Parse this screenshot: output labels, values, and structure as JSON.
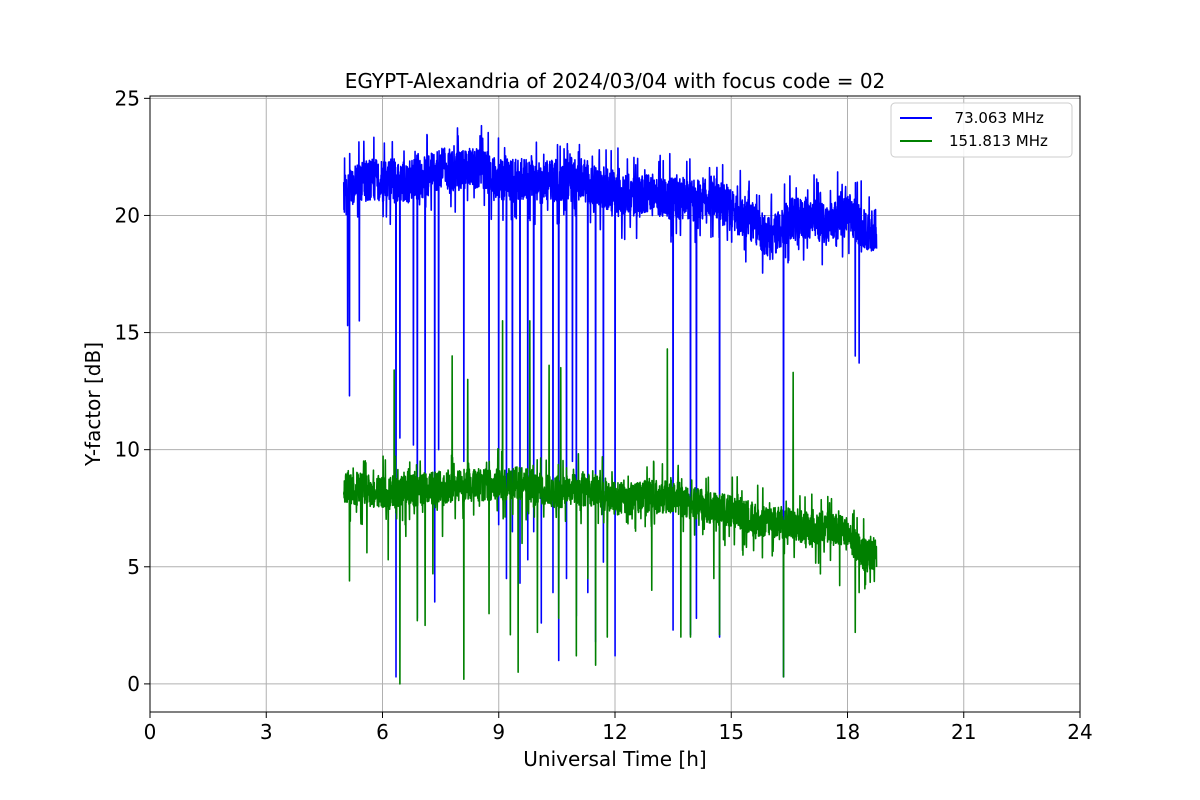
{
  "chart_data": {
    "type": "line",
    "title": "EGYPT-Alexandria of 2024/03/04 with focus code = 02",
    "xlabel": "Universal Time [h]",
    "ylabel": "Y-factor [dB]",
    "xlim": [
      0,
      24
    ],
    "ylim": [
      -1.2,
      25.1
    ],
    "xticks": [
      0,
      3,
      6,
      9,
      12,
      15,
      18,
      21,
      24
    ],
    "yticks": [
      0,
      5,
      10,
      15,
      20,
      25
    ],
    "grid": true,
    "legend_position": "top-right",
    "series": [
      {
        "name": "  73.063 MHz",
        "color": "#0000ff",
        "baseline": [
          [
            5.0,
            20.8
          ],
          [
            5.5,
            21.5
          ],
          [
            6.0,
            21.5
          ],
          [
            6.5,
            21.3
          ],
          [
            7.0,
            21.6
          ],
          [
            7.5,
            22.0
          ],
          [
            8.0,
            21.9
          ],
          [
            8.5,
            22.1
          ],
          [
            9.0,
            21.5
          ],
          [
            9.5,
            21.6
          ],
          [
            10.0,
            21.4
          ],
          [
            10.5,
            21.5
          ],
          [
            11.0,
            21.6
          ],
          [
            11.5,
            21.3
          ],
          [
            12.0,
            21.0
          ],
          [
            12.5,
            20.8
          ],
          [
            13.0,
            20.9
          ],
          [
            13.5,
            20.7
          ],
          [
            14.0,
            20.6
          ],
          [
            14.5,
            20.8
          ],
          [
            15.0,
            20.2
          ],
          [
            15.5,
            19.8
          ],
          [
            16.0,
            19.0
          ],
          [
            16.5,
            19.8
          ],
          [
            17.0,
            19.9
          ],
          [
            17.5,
            19.6
          ],
          [
            18.0,
            20.2
          ],
          [
            18.5,
            19.2
          ],
          [
            18.75,
            19.4
          ]
        ],
        "noise": 0.9,
        "spikes": [
          [
            5.1,
            15.3
          ],
          [
            5.15,
            12.3
          ],
          [
            5.4,
            15.5
          ],
          [
            6.35,
            0.3
          ],
          [
            6.45,
            10.5
          ],
          [
            6.8,
            10.2
          ],
          [
            6.9,
            2.8
          ],
          [
            7.1,
            9.0
          ],
          [
            7.35,
            3.5
          ],
          [
            7.45,
            10.0
          ],
          [
            8.1,
            9.5
          ],
          [
            8.75,
            9.0
          ],
          [
            9.0,
            6.8
          ],
          [
            9.2,
            4.5
          ],
          [
            9.35,
            6.5
          ],
          [
            9.55,
            4.3
          ],
          [
            9.75,
            5.3
          ],
          [
            9.9,
            6.5
          ],
          [
            10.1,
            2.6
          ],
          [
            10.4,
            3.9
          ],
          [
            10.55,
            1.0
          ],
          [
            10.75,
            4.5
          ],
          [
            10.9,
            9.5
          ],
          [
            11.0,
            2.9
          ],
          [
            11.3,
            3.9
          ],
          [
            11.5,
            1.8
          ],
          [
            11.7,
            5.2
          ],
          [
            12.0,
            1.2
          ],
          [
            13.5,
            2.3
          ],
          [
            13.95,
            2.1
          ],
          [
            14.1,
            2.8
          ],
          [
            14.7,
            2.0
          ],
          [
            16.35,
            0.3
          ],
          [
            16.4,
            18.2
          ],
          [
            18.2,
            14.0
          ],
          [
            18.3,
            13.7
          ]
        ]
      },
      {
        "name": "151.813 MHz",
        "color": "#008000",
        "baseline": [
          [
            5.0,
            8.4
          ],
          [
            5.5,
            8.3
          ],
          [
            6.0,
            8.2
          ],
          [
            6.5,
            8.2
          ],
          [
            7.0,
            8.3
          ],
          [
            7.5,
            8.4
          ],
          [
            8.0,
            8.5
          ],
          [
            8.5,
            8.5
          ],
          [
            9.0,
            8.5
          ],
          [
            9.5,
            8.6
          ],
          [
            10.0,
            8.4
          ],
          [
            10.5,
            8.2
          ],
          [
            11.0,
            8.3
          ],
          [
            11.5,
            8.3
          ],
          [
            12.0,
            7.9
          ],
          [
            12.5,
            7.9
          ],
          [
            13.0,
            8.0
          ],
          [
            13.5,
            8.0
          ],
          [
            14.0,
            7.7
          ],
          [
            14.5,
            7.5
          ],
          [
            15.0,
            7.4
          ],
          [
            15.5,
            7.1
          ],
          [
            16.0,
            6.8
          ],
          [
            16.5,
            6.9
          ],
          [
            17.0,
            6.6
          ],
          [
            17.5,
            6.7
          ],
          [
            18.0,
            6.4
          ],
          [
            18.5,
            5.4
          ],
          [
            18.75,
            5.6
          ]
        ],
        "noise": 0.7,
        "spikes": [
          [
            5.15,
            4.4
          ],
          [
            5.6,
            5.6
          ],
          [
            6.15,
            5.3
          ],
          [
            6.3,
            13.4
          ],
          [
            6.45,
            0.0
          ],
          [
            6.6,
            6.3
          ],
          [
            6.9,
            2.7
          ],
          [
            7.1,
            2.5
          ],
          [
            7.3,
            4.7
          ],
          [
            7.55,
            6.3
          ],
          [
            7.8,
            14.0
          ],
          [
            8.1,
            0.2
          ],
          [
            8.2,
            13.0
          ],
          [
            8.75,
            3.0
          ],
          [
            9.1,
            15.5
          ],
          [
            9.3,
            2.1
          ],
          [
            9.5,
            0.5
          ],
          [
            9.6,
            6.0
          ],
          [
            9.8,
            15.5
          ],
          [
            10.0,
            2.2
          ],
          [
            10.3,
            13.6
          ],
          [
            10.55,
            2.8
          ],
          [
            10.6,
            13.5
          ],
          [
            11.0,
            1.2
          ],
          [
            11.3,
            4.5
          ],
          [
            11.5,
            0.8
          ],
          [
            11.8,
            2.0
          ],
          [
            12.3,
            6.9
          ],
          [
            12.95,
            4.0
          ],
          [
            13.35,
            14.3
          ],
          [
            13.7,
            2.0
          ],
          [
            13.95,
            2.0
          ],
          [
            14.55,
            4.5
          ],
          [
            14.7,
            2.1
          ],
          [
            15.3,
            5.5
          ],
          [
            16.35,
            0.3
          ],
          [
            16.6,
            13.3
          ],
          [
            17.3,
            4.7
          ],
          [
            17.8,
            4.2
          ],
          [
            18.2,
            2.2
          ],
          [
            18.3,
            3.9
          ]
        ]
      }
    ]
  }
}
